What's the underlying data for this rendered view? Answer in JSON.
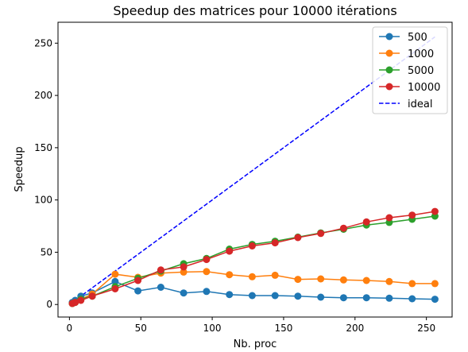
{
  "chart_data": {
    "type": "line",
    "title": "Speedup des matrices pour 10000 itérations",
    "xlabel": "Nb. proc",
    "ylabel": "Speedup",
    "xlim": [
      -8,
      268
    ],
    "ylim": [
      -12,
      270
    ],
    "xticks": [
      0,
      50,
      100,
      150,
      200,
      250
    ],
    "yticks": [
      0,
      50,
      100,
      150,
      200,
      250
    ],
    "grid": false,
    "legend_position": "top-right",
    "x": [
      2,
      4,
      8,
      16,
      32,
      48,
      64,
      80,
      96,
      112,
      128,
      144,
      160,
      176,
      192,
      208,
      224,
      240,
      256
    ],
    "series": [
      {
        "name": "500",
        "color": "#1f77b4",
        "style": "solid",
        "marker": true,
        "values": [
          2,
          4,
          8,
          11,
          22,
          13,
          16.5,
          11,
          12.5,
          9.5,
          8.5,
          8.5,
          8,
          7,
          6.5,
          6.5,
          6,
          5.5,
          5
        ]
      },
      {
        "name": "1000",
        "color": "#ff7f0e",
        "style": "solid",
        "marker": true,
        "values": [
          1,
          2,
          5,
          10,
          29,
          26,
          30,
          31,
          31.5,
          28.5,
          26.5,
          28,
          24,
          24.5,
          23.5,
          23,
          22,
          20,
          20
        ]
      },
      {
        "name": "5000",
        "color": "#2ca02c",
        "style": "solid",
        "marker": true,
        "values": [
          1,
          2,
          5,
          8,
          17,
          25,
          32,
          39,
          44,
          53,
          57.5,
          60.5,
          64.5,
          68.5,
          72,
          76,
          78.5,
          81.5,
          84.5
        ]
      },
      {
        "name": "10000",
        "color": "#d62728",
        "style": "solid",
        "marker": true,
        "values": [
          1,
          2,
          4,
          8,
          15,
          23,
          33,
          36,
          43,
          51,
          56,
          59,
          64,
          68,
          73,
          79,
          83,
          85.5,
          89
        ]
      },
      {
        "name": "ideal",
        "color": "#0000ff",
        "style": "dashed",
        "marker": false,
        "x": [
          2,
          256
        ],
        "values": [
          2,
          256
        ]
      }
    ]
  }
}
